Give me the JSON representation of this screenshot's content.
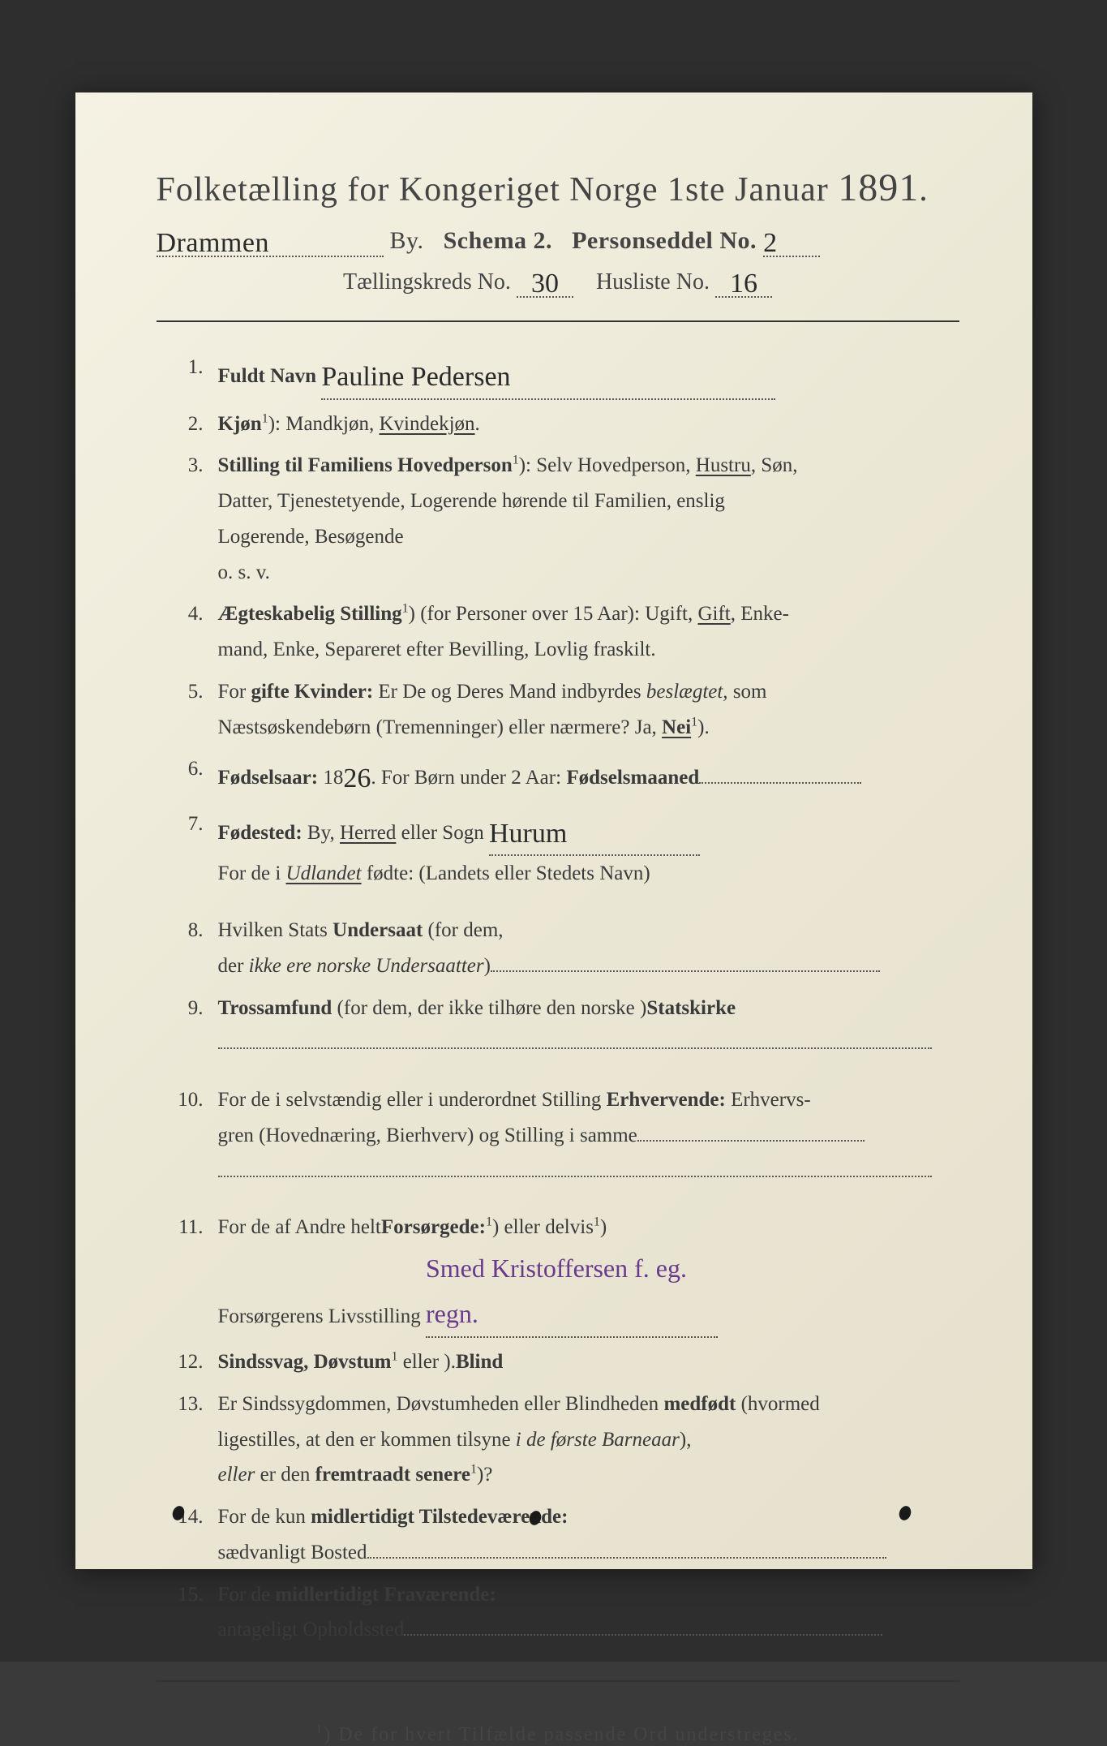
{
  "colors": {
    "page_bg": "#3a3a3a",
    "paper_bg_start": "#f5f2e4",
    "paper_bg_end": "#e5e1cd",
    "text": "#3a3a3a",
    "handwriting": "#2a2a2a",
    "handwriting_purple": "#6a3a8a",
    "rule": "#333333"
  },
  "header": {
    "title_prefix": "Folketælling for Kongeriget Norge 1ste Januar",
    "year": "1891",
    "city_hw": "Drammen",
    "by_label": "By.",
    "schema_label": "Schema 2.",
    "person_label": "Personseddel No.",
    "person_no_hw": "2",
    "kreds_label": "Tællingskreds No.",
    "kreds_no_hw": "30",
    "husliste_label": "Husliste No.",
    "husliste_no_hw": "16"
  },
  "items": [
    {
      "n": "1.",
      "label": "Fuldt Navn",
      "value_hw": "Pauline Pedersen",
      "dots_after": true
    },
    {
      "n": "2.",
      "label": "Kjøn",
      "sup": "1",
      "rest": "): Mandkjøn, ",
      "ul": "Kvindekjøn",
      "after": "."
    },
    {
      "n": "3.",
      "label": "Stilling til Familiens Hovedperson",
      "sup": "1",
      "rest": "): Selv Hovedperson, ",
      "ul": "Hustru",
      "after": ", Søn,",
      "cont": [
        "Datter, Tjenestetyende, Logerende hørende til Familien, enslig",
        "Logerende, Besøgende",
        "o. s. v."
      ]
    },
    {
      "n": "4.",
      "label": "Ægteskabelig Stilling",
      "sup": "1",
      "rest": ") (for Personer over 15 Aar): Ugift, ",
      "ul": "Gift",
      "after": ", Enke-",
      "cont": [
        "mand, Enke, Separeret efter Bevilling, Lovlig fraskilt."
      ]
    },
    {
      "n": "5.",
      "plain": "For ",
      "label": "gifte Kvinder:",
      "rest": " Er De og Deres Mand indbyrdes ",
      "italic": "beslægtet,",
      "after": " som",
      "cont_html": "Næstsøskendebørn (Tremenninger) eller nærmere?  Ja, <span class='ul bold'>Nei</span><span class='sup'>1</span>)."
    },
    {
      "n": "6.",
      "label": "Fødselsaar:",
      "rest": " 18",
      "hw_inline": "26",
      "after": ".  For Børn under 2 Aar:",
      "label2": " Fødselsmaaned",
      "dots_after": true
    },
    {
      "n": "7.",
      "label": "Fødested:",
      "rest": " By, ",
      "ul": "Herred",
      "after": " eller Sogn ",
      "hw_inline2": "Hurum",
      "dots_after": true,
      "cont_html": "For de i <span class='italic ul'>Udlandet</span> fødte: (Landets eller Stedets Navn)"
    },
    {
      "n": "8.",
      "plain": "Hvilken Stats ",
      "label": "Undersaat",
      "rest": " (for dem,",
      "cont_html": "der <span class='italic'>ikke ere norske Undersaatter</span>)<span class='long-dots' style='width:480px'></span>"
    },
    {
      "n": "9.",
      "label": "Trossamfund",
      "rest": "  (for dem, der ikke tilhøre den norske ",
      "label2": "Statskirke",
      "after": ")",
      "cont_html": "<span class='long-dots' style='width:880px'></span>"
    },
    {
      "n": "10.",
      "plain": "For de i selvstændig eller i underordnet Stilling ",
      "label": "Erhvervende:",
      "rest": " Erhvervs-",
      "cont_html": "gren (Hovednæring, Bierhverv) og Stilling i samme<span class='long-dots' style='width:280px'></span><br><span class='long-dots' style='width:880px'></span>"
    },
    {
      "n": "11.",
      "plain": "For de af Andre helt",
      "sup": "1",
      "rest": ") eller delvis",
      "sup2": "1",
      "rest2": ") ",
      "label": "Forsørgede:",
      "cont_html": "Forsørgerens Livsstilling <span class='long-dots' style='width:360px'><span class='hw-purple'>Smed Kristoffersen f. eg. regn.</span></span>"
    },
    {
      "n": "12.",
      "label": "Sindssvag, Døvstum",
      "rest": " eller ",
      "label2": "Blind",
      "sup": "1",
      "after": ")."
    },
    {
      "n": "13.",
      "plain": "Er Sindssygdommen, Døvstumheden eller Blindheden ",
      "label": "medfødt",
      "rest": " (hvormed",
      "cont_html": "ligestilles, at den er kommen tilsyne <span class='italic'>i de første Barneaar</span>),<br><span class='italic'>eller</span> er den <span class='bold'>fremtraadt senere</span><span class='sup'>1</span>)?"
    },
    {
      "n": "14.",
      "plain": "For de kun ",
      "label": "midlertidigt Tilstedeværende:",
      "cont_html": "sædvanligt Bosted<span class='long-dots' style='width:640px'></span>"
    },
    {
      "n": "15.",
      "plain": "For de ",
      "label": "midlertidigt Fraværende:",
      "cont_html": "antageligt Opholdssted<span class='long-dots' style='width:590px'></span>"
    }
  ],
  "footnote": {
    "marker": "1",
    "text": ") De for hvert Tilfælde passende Ord understreges."
  }
}
